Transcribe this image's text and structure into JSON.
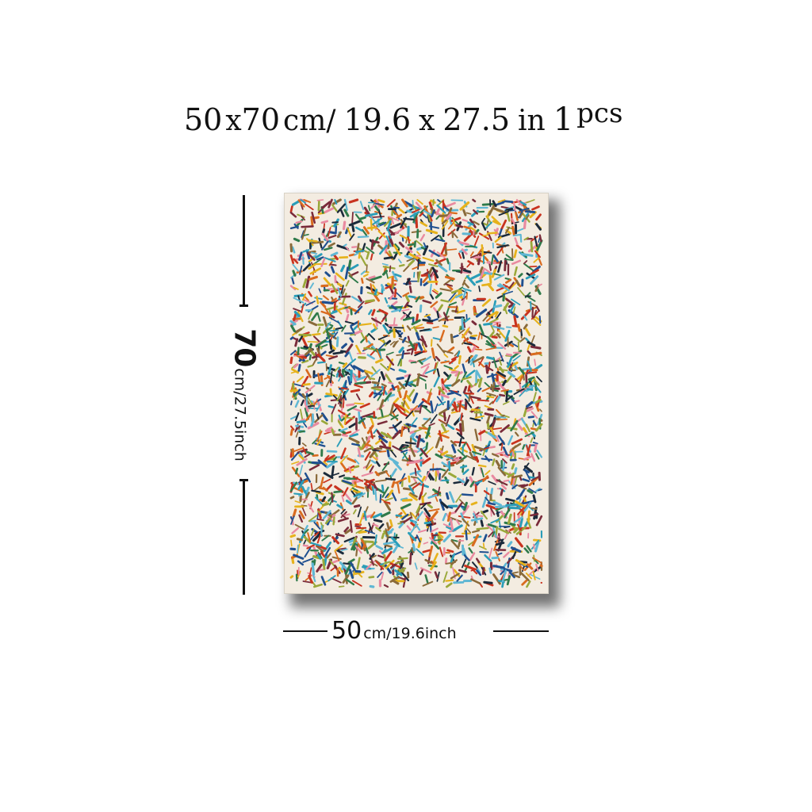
{
  "headline": {
    "width_num": "50",
    "times_1": "x",
    "height_num": "70",
    "unit_cm": "cm/",
    "width_in": "19.6",
    "times_2": "x",
    "height_in": "27.5",
    "unit_in": "in",
    "qty_num": "1",
    "qty_unit": "pcs"
  },
  "height_dimension": {
    "value": "70",
    "unit_text": "cm/27.5inch"
  },
  "width_dimension": {
    "value": "50",
    "unit_text": "cm/19.6inch"
  },
  "artwork": {
    "description_icon": "abstract-confetti-strokes-painting",
    "background_color": "#f3ece1",
    "palette": [
      "#1f4f8f",
      "#2a9db8",
      "#e6b21c",
      "#c8331f",
      "#7a2b3a",
      "#2f7a4a",
      "#e98aa0",
      "#8a6a3a",
      "#1b2a3a",
      "#5fb7d4",
      "#d96b1f",
      "#9aa83a"
    ]
  }
}
